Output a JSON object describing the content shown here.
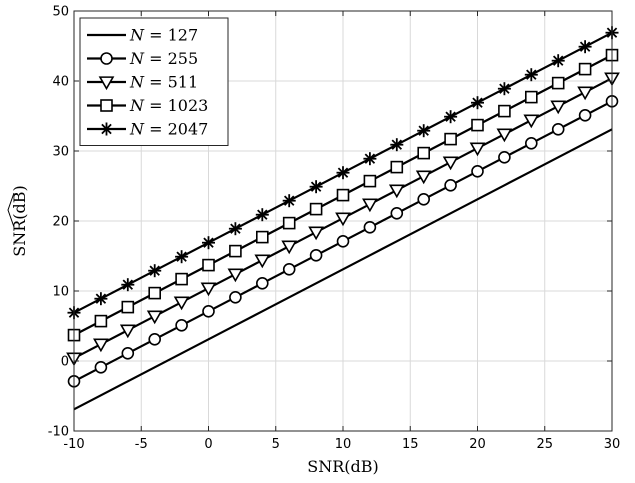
{
  "chart_data": {
    "type": "line",
    "xlabel": "SNR(dB)",
    "ylabel": "SNR(dB)",
    "ylabel_hat": true,
    "xlim": [
      -10,
      30
    ],
    "ylim": [
      -10,
      50
    ],
    "xticks": [
      -10,
      -5,
      0,
      5,
      10,
      15,
      20,
      25,
      30
    ],
    "yticks": [
      -10,
      0,
      10,
      20,
      30,
      40,
      50
    ],
    "xtick_labels": [
      "-10",
      "-5",
      "0",
      "5",
      "10",
      "15",
      "20",
      "25",
      "30"
    ],
    "ytick_labels": [
      "-10",
      "0",
      "10",
      "20",
      "30",
      "40",
      "50"
    ],
    "grid": true,
    "legend_position": "top-left",
    "x": [
      -10,
      -8,
      -6,
      -4,
      -2,
      0,
      2,
      4,
      6,
      8,
      10,
      12,
      14,
      16,
      18,
      20,
      22,
      24,
      26,
      28,
      30
    ],
    "series": [
      {
        "name": "N = 127",
        "label_var": "N",
        "label_value": "127",
        "marker": "none",
        "values": [
          -6.9,
          -4.9,
          -2.9,
          -0.9,
          1.1,
          3.1,
          5.1,
          7.1,
          9.1,
          11.1,
          13.1,
          15.1,
          17.1,
          19.1,
          21.1,
          23.1,
          25.1,
          27.1,
          29.1,
          31.1,
          33.1
        ]
      },
      {
        "name": "N = 255",
        "label_var": "N",
        "label_value": "255",
        "marker": "circle",
        "values": [
          -2.9,
          -0.9,
          1.1,
          3.1,
          5.1,
          7.1,
          9.1,
          11.1,
          13.1,
          15.1,
          17.1,
          19.1,
          21.1,
          23.1,
          25.1,
          27.1,
          29.1,
          31.1,
          33.1,
          35.1,
          37.1
        ]
      },
      {
        "name": "N = 511",
        "label_var": "N",
        "label_value": "511",
        "marker": "triangle-down",
        "values": [
          0.4,
          2.4,
          4.4,
          6.4,
          8.4,
          10.4,
          12.4,
          14.4,
          16.4,
          18.4,
          20.4,
          22.4,
          24.4,
          26.4,
          28.4,
          30.4,
          32.4,
          34.4,
          36.4,
          38.4,
          40.4
        ]
      },
      {
        "name": "N = 1023",
        "label_var": "N",
        "label_value": "1023",
        "marker": "square",
        "values": [
          3.7,
          5.7,
          7.7,
          9.7,
          11.7,
          13.7,
          15.7,
          17.7,
          19.7,
          21.7,
          23.7,
          25.7,
          27.7,
          29.7,
          31.7,
          33.7,
          35.7,
          37.7,
          39.7,
          41.7,
          43.7
        ]
      },
      {
        "name": "N = 2047",
        "label_var": "N",
        "label_value": "2047",
        "marker": "asterisk",
        "values": [
          6.9,
          8.9,
          10.9,
          12.9,
          14.9,
          16.9,
          18.9,
          20.9,
          22.9,
          24.9,
          26.9,
          28.9,
          30.9,
          32.9,
          34.9,
          36.9,
          38.9,
          40.9,
          42.9,
          44.9,
          46.9
        ]
      }
    ],
    "colors": {
      "line": "#000000",
      "grid": "#d9d9d9",
      "axes": "#262626"
    }
  }
}
